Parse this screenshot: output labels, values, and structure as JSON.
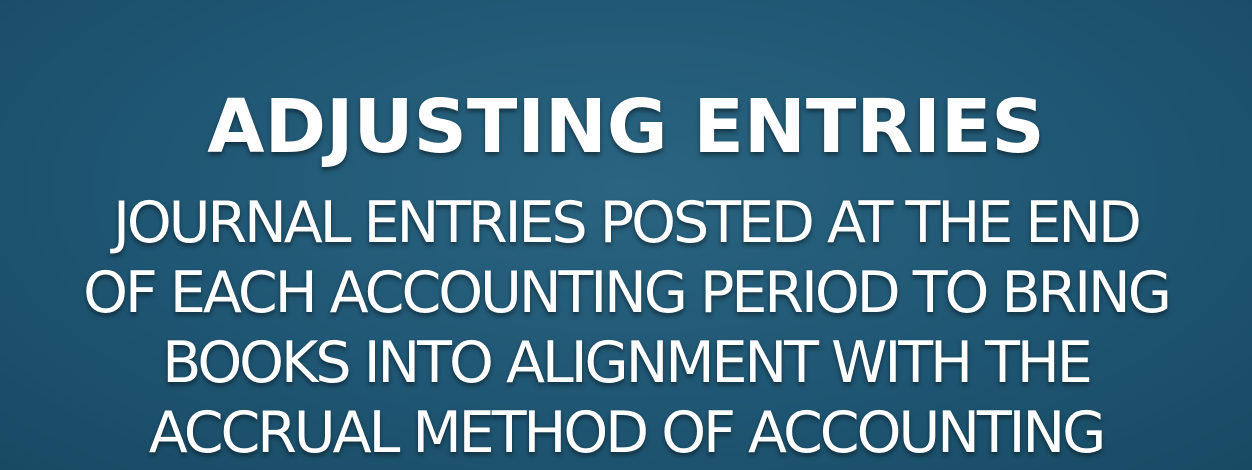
{
  "slide": {
    "title": "ADJUSTING ENTRIES",
    "definition_lines": [
      "JOURNAL ENTRIES POSTED AT THE END",
      "OF EACH ACCOUNTING PERIOD TO BRING",
      "BOOKS INTO ALIGNMENT WITH THE",
      "ACCRUAL METHOD OF ACCOUNTING"
    ]
  },
  "colors": {
    "background": "#1f5673",
    "text": "#ffffff"
  }
}
